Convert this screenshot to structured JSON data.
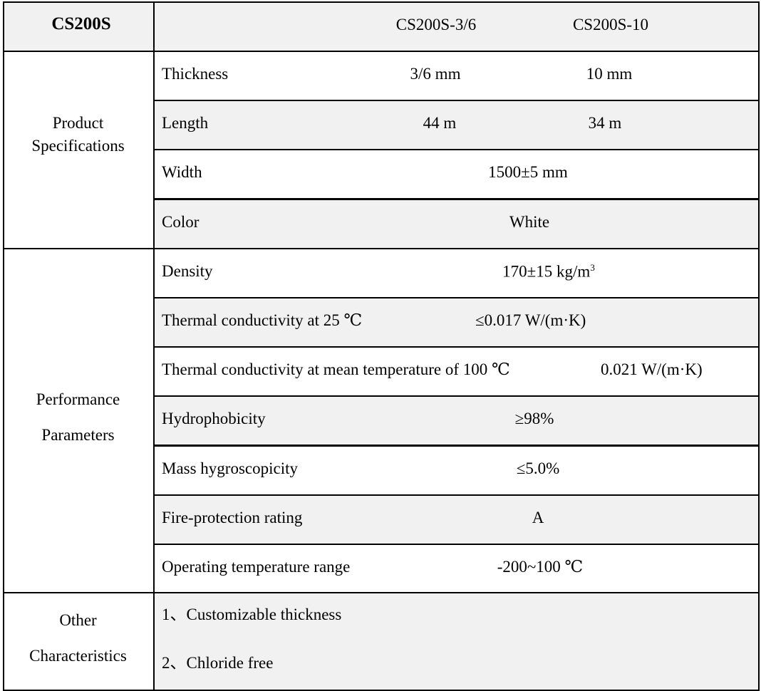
{
  "header": {
    "title": "CS200S",
    "models": [
      "CS200S-3/6",
      "CS200S-10"
    ]
  },
  "groups": {
    "product": [
      "Product",
      "Specifications"
    ],
    "performance": [
      "Performance",
      "Parameters"
    ],
    "other": [
      "Other",
      "Characteristics"
    ]
  },
  "rows": [
    {
      "label": "Thickness",
      "values": [
        "3/6 mm",
        "10 mm"
      ]
    },
    {
      "label": "Length",
      "values": [
        "44 m",
        "34 m"
      ]
    },
    {
      "label": "Width",
      "value": "1500±5 mm"
    },
    {
      "label": "Color",
      "value": "White"
    },
    {
      "label": "Density",
      "value": "170±15 kg/m",
      "sup": "3"
    },
    {
      "label": "Thermal conductivity at 25 ℃",
      "value": "≤0.017 W/(m·K)"
    },
    {
      "label": "Thermal conductivity at mean temperature of 100 ℃",
      "value": "0.021 W/(m·K)"
    },
    {
      "label": "Hydrophobicity",
      "value": "≥98%"
    },
    {
      "label": "Mass hygroscopicity",
      "value": "≤5.0%"
    },
    {
      "label": "Fire-protection rating",
      "value": "A"
    },
    {
      "label": "Operating temperature range",
      "value": "-200~100 ℃"
    }
  ],
  "other": [
    "1、Customizable thickness",
    "2、Chloride free"
  ],
  "colors": {
    "shade": "#f1f1f1",
    "border": "#000000"
  }
}
